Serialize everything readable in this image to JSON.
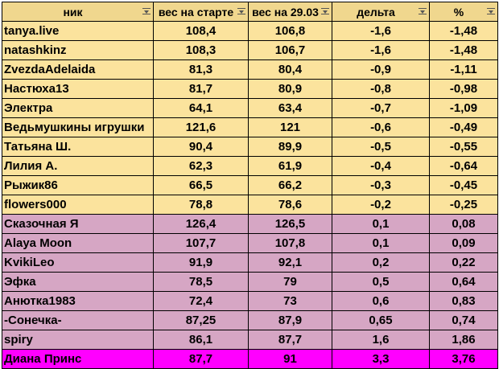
{
  "headers": [
    "ник",
    "вес на старте",
    "вес на 29.03",
    "дельта",
    "%"
  ],
  "colors": {
    "header": "#f0d78e",
    "loss_rows": "#fbe39d",
    "gain_rows": "#d6a6c4",
    "highlight_row": "#ff00ff"
  },
  "rows": [
    {
      "name": " tanya.live",
      "start": "108,4",
      "current": "106,8",
      "delta": "-1,6",
      "pct": "-1,48",
      "group": "loss"
    },
    {
      "name": "natashkinz",
      "start": "108,3",
      "current": "106,7",
      "delta": "-1,6",
      "pct": "-1,48",
      "group": "loss"
    },
    {
      "name": " ZvezdaAdelaida",
      "start": "81,3",
      "current": "80,4",
      "delta": "-0,9",
      "pct": "-1,11",
      "group": "loss"
    },
    {
      "name": " Настюха13",
      "start": "81,7",
      "current": "80,9",
      "delta": "-0,8",
      "pct": "-0,98",
      "group": "loss"
    },
    {
      "name": "Электра",
      "start": "64,1",
      "current": "63,4",
      "delta": "-0,7",
      "pct": "-1,09",
      "group": "loss"
    },
    {
      "name": "Ведьмушкины игрушки",
      "start": "121,6",
      "current": "121",
      "delta": "-0,6",
      "pct": "-0,49",
      "group": "loss"
    },
    {
      "name": "Татьяна Ш.",
      "start": "90,4",
      "current": "89,9",
      "delta": "-0,5",
      "pct": "-0,55",
      "group": "loss"
    },
    {
      "name": " Лилия А.",
      "start": "62,3",
      "current": "61,9",
      "delta": "-0,4",
      "pct": "-0,64",
      "group": "loss"
    },
    {
      "name": "Рыжик86",
      "start": "66,5",
      "current": "66,2",
      "delta": "-0,3",
      "pct": "-0,45",
      "group": "loss"
    },
    {
      "name": "flowers000",
      "start": "78,8",
      "current": "78,6",
      "delta": "-0,2",
      "pct": "-0,25",
      "group": "loss"
    },
    {
      "name": "Сказочная Я",
      "start": "126,4",
      "current": "126,5",
      "delta": "0,1",
      "pct": "0,08",
      "group": "gain"
    },
    {
      "name": " Alaya Moon",
      "start": "107,7",
      "current": "107,8",
      "delta": "0,1",
      "pct": "0,09",
      "group": "gain"
    },
    {
      "name": "KvikiLeo",
      "start": "91,9",
      "current": "92,1",
      "delta": "0,2",
      "pct": "0,22",
      "group": "gain"
    },
    {
      "name": " Эфка",
      "start": "78,5",
      "current": "79",
      "delta": "0,5",
      "pct": "0,64",
      "group": "gain"
    },
    {
      "name": " Анютка1983",
      "start": "72,4",
      "current": "73",
      "delta": "0,6",
      "pct": "0,83",
      "group": "gain"
    },
    {
      "name": "-Сонечка-",
      "start": "87,25",
      "current": "87,9",
      "delta": "0,65",
      "pct": "0,74",
      "group": "gain"
    },
    {
      "name": "spiry",
      "start": "86,1",
      "current": "87,7",
      "delta": "1,6",
      "pct": "1,86",
      "group": "gain"
    },
    {
      "name": "Диана Принс",
      "start": "87,7",
      "current": "91",
      "delta": "3,3",
      "pct": "3,76",
      "group": "top"
    }
  ]
}
